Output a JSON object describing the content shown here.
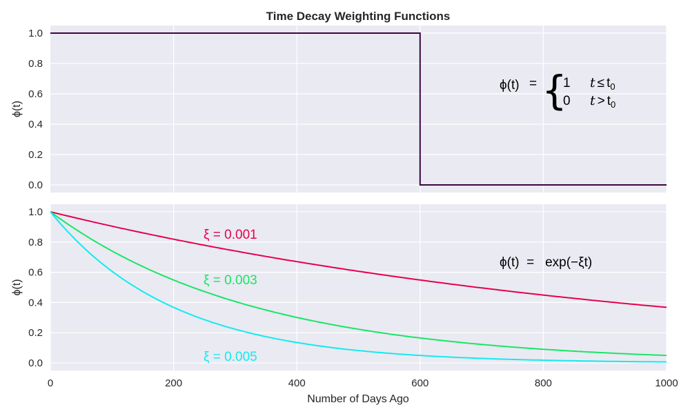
{
  "title": "Time Decay Weighting Functions",
  "chart_data": [
    {
      "type": "line",
      "title": "Time Decay Weighting Functions",
      "xlabel": "",
      "ylabel": "ϕ(t)",
      "xlim": [
        0,
        1000
      ],
      "ylim": [
        -0.05,
        1.05
      ],
      "xticks": [
        200,
        400,
        600,
        800,
        1000
      ],
      "yticks": [
        0.0,
        0.2,
        0.4,
        0.6,
        0.8,
        1.0
      ],
      "ytick_labels": [
        "0.0",
        "0.2",
        "0.4",
        "0.6",
        "0.8",
        "1.0"
      ],
      "grid": true,
      "series": [
        {
          "color": "#3a0541",
          "x": [
            0,
            600,
            600,
            1000
          ],
          "y": [
            1.0,
            1.0,
            0.0,
            0.0
          ]
        }
      ],
      "annotation": {
        "lhs": "ϕ(t)",
        "eq": "=",
        "brace": "{",
        "case1_value": "1",
        "case1_cond_var": "t",
        "case1_cond_op": "≤",
        "case1_cond_t": "t",
        "case1_cond_sub": "0",
        "case2_value": "0",
        "case2_cond_var": "t",
        "case2_cond_op": ">",
        "case2_cond_t": "t",
        "case2_cond_sub": "0"
      }
    },
    {
      "type": "line",
      "xlabel": "Number of Days Ago",
      "ylabel": "ϕ(t)",
      "xlim": [
        0,
        1000
      ],
      "ylim": [
        -0.05,
        1.05
      ],
      "xticks": [
        0,
        200,
        400,
        600,
        800,
        1000
      ],
      "xtick_labels": [
        "0",
        "200",
        "400",
        "600",
        "800",
        "1000"
      ],
      "yticks": [
        0.0,
        0.2,
        0.4,
        0.6,
        0.8,
        1.0
      ],
      "ytick_labels": [
        "0.0",
        "0.2",
        "0.4",
        "0.6",
        "0.8",
        "1.0"
      ],
      "grid": true,
      "formula": "y = exp(-ξ·x)",
      "series": [
        {
          "label": "ξ = 0.001",
          "xi": 0.001,
          "color": "#e6004c"
        },
        {
          "label": "ξ = 0.003",
          "xi": 0.003,
          "color": "#17e665"
        },
        {
          "label": "ξ = 0.005",
          "xi": 0.005,
          "color": "#12eaf0"
        }
      ],
      "annotation": {
        "text": "ϕ(t)  =   exp(−ξt)"
      }
    }
  ]
}
